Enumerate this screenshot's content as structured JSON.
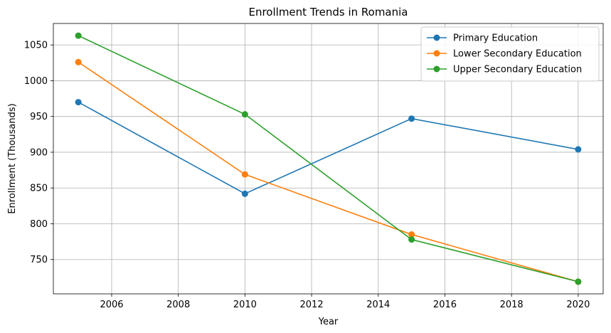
{
  "chart_data": {
    "type": "line",
    "title": "Enrollment Trends in Romania",
    "xlabel": "Year",
    "ylabel": "Enrollment (Thousands)",
    "x": [
      2005,
      2010,
      2015,
      2020
    ],
    "xlim": [
      2004.25,
      2020.75
    ],
    "ylim": [
      702,
      1080
    ],
    "xticks": [
      2006,
      2008,
      2010,
      2012,
      2014,
      2016,
      2018,
      2020
    ],
    "yticks": [
      750,
      800,
      850,
      900,
      950,
      1000,
      1050
    ],
    "grid": true,
    "legend_position": "top-right",
    "series": [
      {
        "name": "Primary Education",
        "color": "#1f77b4",
        "values": [
          970,
          842,
          947,
          904
        ]
      },
      {
        "name": "Lower Secondary Education",
        "color": "#ff7f0e",
        "values": [
          1026,
          869,
          785,
          719
        ]
      },
      {
        "name": "Upper Secondary Education",
        "color": "#2ca02c",
        "values": [
          1063,
          953,
          778,
          719
        ]
      }
    ]
  }
}
